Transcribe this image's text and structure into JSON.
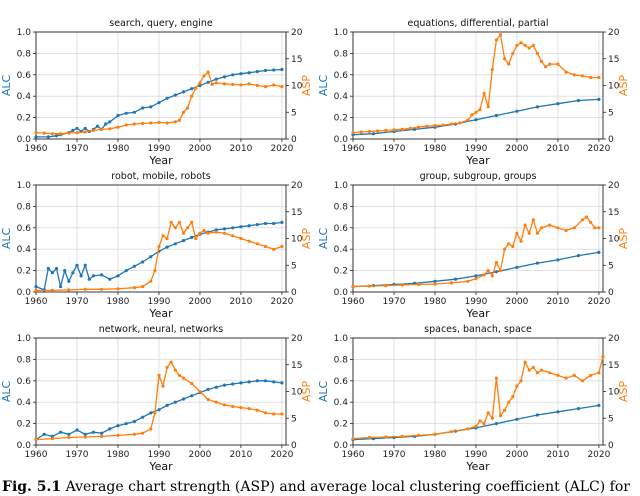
{
  "caption": {
    "label": "Fig. 5.1",
    "text": "Average chart strength (ASP) and average local clustering coefficient (ALC) for"
  },
  "chart_data": [
    {
      "type": "line",
      "title": "search, query, engine",
      "xlabel": "Year",
      "ylabel": "ALC",
      "y2label": "ASP",
      "xlim": [
        1960,
        2021
      ],
      "ylim": [
        0,
        1.0
      ],
      "y2lim": [
        0,
        20
      ],
      "xticks": [
        "1960",
        "1970",
        "1980",
        "1990",
        "2000",
        "2010",
        "2020"
      ],
      "yticks": [
        "0.0",
        "0.2",
        "0.4",
        "0.6",
        "0.8",
        "1.0"
      ],
      "y2ticks": [
        "0",
        "5",
        "10",
        "15",
        "20"
      ],
      "series": [
        {
          "name": "ALC",
          "axis": "left",
          "color": "#1f77b4",
          "x": [
            1960,
            1963,
            1965,
            1966,
            1968,
            1969,
            1970,
            1971,
            1972,
            1973,
            1974,
            1975,
            1976,
            1977,
            1978,
            1980,
            1982,
            1984,
            1986,
            1988,
            1990,
            1992,
            1994,
            1996,
            1998,
            2000,
            2002,
            2004,
            2006,
            2008,
            2010,
            2012,
            2014,
            2016,
            2018,
            2020
          ],
          "y": [
            0.02,
            0.02,
            0.03,
            0.04,
            0.06,
            0.08,
            0.1,
            0.07,
            0.1,
            0.07,
            0.09,
            0.12,
            0.09,
            0.14,
            0.16,
            0.22,
            0.24,
            0.25,
            0.29,
            0.3,
            0.34,
            0.38,
            0.41,
            0.44,
            0.47,
            0.5,
            0.53,
            0.56,
            0.58,
            0.6,
            0.61,
            0.62,
            0.63,
            0.64,
            0.645,
            0.65
          ]
        },
        {
          "name": "ASP",
          "axis": "right",
          "color": "#ff7f0e",
          "x": [
            1960,
            1962,
            1964,
            1966,
            1968,
            1970,
            1972,
            1974,
            1976,
            1978,
            1980,
            1982,
            1984,
            1986,
            1988,
            1990,
            1992,
            1994,
            1995,
            1996,
            1997,
            1998,
            1999,
            2000,
            2001,
            2002,
            2003,
            2004,
            2006,
            2008,
            2010,
            2012,
            2014,
            2016,
            2018,
            2020
          ],
          "y": [
            1.2,
            1.1,
            1.0,
            1.0,
            1.1,
            1.2,
            1.3,
            1.6,
            1.8,
            1.9,
            2.2,
            2.6,
            2.8,
            2.9,
            3.0,
            3.1,
            3.0,
            3.2,
            3.5,
            5.0,
            5.8,
            8.0,
            9.5,
            10.5,
            11.8,
            12.5,
            10.2,
            10.5,
            10.3,
            10.2,
            10.1,
            10.3,
            10.0,
            9.8,
            10.1,
            9.8
          ]
        }
      ]
    },
    {
      "type": "line",
      "title": "equations, differential, partial",
      "xlabel": "Year",
      "ylabel": "ALC",
      "y2label": "ASP",
      "xlim": [
        1960,
        2021
      ],
      "ylim": [
        0,
        1.0
      ],
      "y2lim": [
        0,
        20
      ],
      "xticks": [
        "1960",
        "1970",
        "1980",
        "1990",
        "2000",
        "2010",
        "2020"
      ],
      "yticks": [
        "0.0",
        "0.2",
        "0.4",
        "0.6",
        "0.8",
        "1.0"
      ],
      "y2ticks": [
        "0",
        "5",
        "10",
        "15",
        "20"
      ],
      "series": [
        {
          "name": "ALC",
          "axis": "left",
          "color": "#1f77b4",
          "x": [
            1960,
            1965,
            1970,
            1975,
            1980,
            1985,
            1990,
            1995,
            2000,
            2005,
            2010,
            2015,
            2020
          ],
          "y": [
            0.04,
            0.05,
            0.07,
            0.09,
            0.11,
            0.14,
            0.18,
            0.22,
            0.26,
            0.3,
            0.33,
            0.36,
            0.37
          ]
        },
        {
          "name": "ASP",
          "axis": "right",
          "color": "#ff7f0e",
          "x": [
            1960,
            1962,
            1964,
            1966,
            1968,
            1970,
            1972,
            1974,
            1976,
            1978,
            1980,
            1982,
            1984,
            1986,
            1988,
            1989,
            1990,
            1991,
            1992,
            1993,
            1994,
            1995,
            1996,
            1997,
            1998,
            1999,
            2000,
            2001,
            2002,
            2003,
            2004,
            2005,
            2006,
            2007,
            2008,
            2010,
            2012,
            2014,
            2016,
            2018,
            2020
          ],
          "y": [
            1.2,
            1.3,
            1.4,
            1.5,
            1.6,
            1.7,
            1.8,
            2.0,
            2.2,
            2.4,
            2.5,
            2.6,
            2.8,
            3.0,
            3.5,
            4.5,
            5.0,
            5.5,
            8.5,
            6.0,
            13.0,
            18.5,
            19.5,
            15.0,
            14.0,
            16.0,
            17.5,
            18.0,
            17.5,
            17.0,
            17.5,
            16.0,
            14.5,
            13.5,
            14.0,
            14.0,
            12.5,
            12.0,
            11.8,
            11.5,
            11.5
          ]
        }
      ]
    },
    {
      "type": "line",
      "title": "robot, mobile, robots",
      "xlabel": "Year",
      "ylabel": "ALC",
      "y2label": "ASP",
      "xlim": [
        1960,
        2021
      ],
      "ylim": [
        0,
        1.0
      ],
      "y2lim": [
        0,
        20
      ],
      "xticks": [
        "1960",
        "1970",
        "1980",
        "1990",
        "2000",
        "2010",
        "2020"
      ],
      "yticks": [
        "0.0",
        "0.2",
        "0.4",
        "0.6",
        "0.8",
        "1.0"
      ],
      "y2ticks": [
        "0",
        "5",
        "10",
        "15",
        "20"
      ],
      "series": [
        {
          "name": "ALC",
          "axis": "left",
          "color": "#1f77b4",
          "x": [
            1960,
            1962,
            1963,
            1964,
            1965,
            1966,
            1967,
            1968,
            1969,
            1970,
            1971,
            1972,
            1973,
            1974,
            1976,
            1978,
            1980,
            1982,
            1984,
            1986,
            1988,
            1990,
            1992,
            1994,
            1996,
            1998,
            2000,
            2002,
            2004,
            2006,
            2008,
            2010,
            2012,
            2014,
            2016,
            2018,
            2020
          ],
          "y": [
            0.05,
            0.02,
            0.22,
            0.18,
            0.22,
            0.05,
            0.2,
            0.1,
            0.18,
            0.25,
            0.15,
            0.25,
            0.12,
            0.15,
            0.16,
            0.12,
            0.15,
            0.2,
            0.24,
            0.28,
            0.33,
            0.38,
            0.42,
            0.45,
            0.48,
            0.51,
            0.54,
            0.56,
            0.58,
            0.59,
            0.6,
            0.61,
            0.62,
            0.63,
            0.64,
            0.64,
            0.65
          ]
        },
        {
          "name": "ASP",
          "axis": "right",
          "color": "#ff7f0e",
          "x": [
            1960,
            1964,
            1968,
            1972,
            1976,
            1980,
            1984,
            1986,
            1988,
            1989,
            1990,
            1991,
            1992,
            1993,
            1994,
            1995,
            1996,
            1997,
            1998,
            1999,
            2000,
            2001,
            2002,
            2004,
            2006,
            2008,
            2010,
            2012,
            2014,
            2016,
            2018,
            2020
          ],
          "y": [
            0.3,
            0.3,
            0.4,
            0.5,
            0.5,
            0.6,
            0.8,
            1.0,
            2.0,
            4.0,
            8.5,
            10.5,
            10.0,
            13.0,
            12.0,
            13.0,
            11.0,
            12.0,
            13.0,
            10.0,
            11.0,
            11.5,
            11.0,
            11.2,
            11.0,
            10.5,
            10.0,
            9.5,
            9.0,
            8.5,
            8.0,
            8.5
          ]
        }
      ]
    },
    {
      "type": "line",
      "title": "group, subgroup, groups",
      "xlabel": "Year",
      "ylabel": "ALC",
      "y2label": "ASP",
      "xlim": [
        1960,
        2021
      ],
      "ylim": [
        0,
        1.0
      ],
      "y2lim": [
        0,
        20
      ],
      "xticks": [
        "1960",
        "1970",
        "1980",
        "1990",
        "2000",
        "2010",
        "2020"
      ],
      "yticks": [
        "0.0",
        "0.2",
        "0.4",
        "0.6",
        "0.8",
        "1.0"
      ],
      "y2ticks": [
        "0",
        "5",
        "10",
        "15",
        "20"
      ],
      "series": [
        {
          "name": "ALC",
          "axis": "left",
          "color": "#1f77b4",
          "x": [
            1960,
            1965,
            1970,
            1975,
            1980,
            1985,
            1990,
            1995,
            2000,
            2005,
            2010,
            2015,
            2020
          ],
          "y": [
            0.05,
            0.06,
            0.07,
            0.08,
            0.1,
            0.12,
            0.15,
            0.19,
            0.23,
            0.27,
            0.3,
            0.34,
            0.37
          ]
        },
        {
          "name": "ASP",
          "axis": "right",
          "color": "#ff7f0e",
          "x": [
            1960,
            1964,
            1968,
            1972,
            1976,
            1980,
            1984,
            1988,
            1990,
            1992,
            1993,
            1994,
            1995,
            1996,
            1997,
            1998,
            1999,
            2000,
            2001,
            2002,
            2003,
            2004,
            2005,
            2006,
            2008,
            2010,
            2012,
            2014,
            2016,
            2017,
            2018,
            2019,
            2020
          ],
          "y": [
            1.0,
            1.1,
            1.2,
            1.3,
            1.4,
            1.5,
            1.7,
            2.0,
            2.5,
            3.2,
            4.0,
            3.0,
            5.5,
            4.0,
            8.0,
            9.0,
            8.5,
            11.0,
            9.5,
            12.5,
            11.0,
            13.5,
            11.0,
            12.0,
            12.5,
            12.0,
            11.5,
            12.0,
            13.5,
            14.0,
            13.0,
            12.0,
            12.0
          ]
        }
      ]
    },
    {
      "type": "line",
      "title": "network, neural, networks",
      "xlabel": "Year",
      "ylabel": "ALC",
      "y2label": "ASP",
      "xlim": [
        1960,
        2021
      ],
      "ylim": [
        0,
        1.0
      ],
      "y2lim": [
        0,
        20
      ],
      "xticks": [
        "1960",
        "1970",
        "1980",
        "1990",
        "2000",
        "2010",
        "2020"
      ],
      "yticks": [
        "0.0",
        "0.2",
        "0.4",
        "0.6",
        "0.8",
        "1.0"
      ],
      "y2ticks": [
        "0",
        "5",
        "10",
        "15",
        "20"
      ],
      "series": [
        {
          "name": "ALC",
          "axis": "left",
          "color": "#1f77b4",
          "x": [
            1960,
            1962,
            1964,
            1966,
            1968,
            1970,
            1972,
            1974,
            1976,
            1978,
            1980,
            1982,
            1984,
            1986,
            1988,
            1990,
            1992,
            1994,
            1996,
            1998,
            2000,
            2002,
            2004,
            2006,
            2008,
            2010,
            2012,
            2014,
            2016,
            2018,
            2020
          ],
          "y": [
            0.05,
            0.1,
            0.08,
            0.12,
            0.1,
            0.14,
            0.1,
            0.12,
            0.11,
            0.15,
            0.18,
            0.2,
            0.22,
            0.26,
            0.3,
            0.33,
            0.37,
            0.4,
            0.43,
            0.46,
            0.49,
            0.52,
            0.54,
            0.56,
            0.57,
            0.58,
            0.59,
            0.6,
            0.6,
            0.59,
            0.58
          ]
        },
        {
          "name": "ASP",
          "axis": "right",
          "color": "#ff7f0e",
          "x": [
            1960,
            1964,
            1968,
            1972,
            1976,
            1980,
            1984,
            1986,
            1988,
            1989,
            1990,
            1991,
            1992,
            1993,
            1994,
            1995,
            1996,
            1998,
            2000,
            2002,
            2004,
            2006,
            2008,
            2010,
            2012,
            2014,
            2016,
            2018,
            2020
          ],
          "y": [
            1.0,
            1.2,
            1.4,
            1.5,
            1.6,
            1.8,
            2.0,
            2.2,
            3.0,
            6.0,
            13.0,
            11.0,
            14.5,
            15.5,
            14.0,
            13.0,
            12.5,
            11.5,
            10.0,
            8.5,
            8.0,
            7.5,
            7.2,
            7.0,
            6.8,
            6.5,
            6.0,
            5.8,
            5.8
          ]
        }
      ]
    },
    {
      "type": "line",
      "title": "spaces, banach, space",
      "xlabel": "Year",
      "ylabel": "ALC",
      "y2label": "ASP",
      "xlim": [
        1960,
        2021
      ],
      "ylim": [
        0,
        1.0
      ],
      "y2lim": [
        0,
        20
      ],
      "xticks": [
        "1960",
        "1970",
        "1980",
        "1990",
        "2000",
        "2010",
        "2020"
      ],
      "yticks": [
        "0.0",
        "0.2",
        "0.4",
        "0.6",
        "0.8",
        "1.0"
      ],
      "y2ticks": [
        "0",
        "5",
        "10",
        "15",
        "20"
      ],
      "series": [
        {
          "name": "ALC",
          "axis": "left",
          "color": "#1f77b4",
          "x": [
            1960,
            1965,
            1970,
            1975,
            1980,
            1985,
            1990,
            1995,
            2000,
            2005,
            2010,
            2015,
            2020
          ],
          "y": [
            0.05,
            0.06,
            0.07,
            0.08,
            0.1,
            0.13,
            0.16,
            0.2,
            0.24,
            0.28,
            0.31,
            0.34,
            0.37
          ]
        },
        {
          "name": "ASP",
          "axis": "right",
          "color": "#ff7f0e",
          "x": [
            1960,
            1964,
            1968,
            1972,
            1976,
            1980,
            1984,
            1988,
            1990,
            1991,
            1992,
            1993,
            1994,
            1995,
            1996,
            1997,
            1998,
            1999,
            2000,
            2001,
            2002,
            2003,
            2004,
            2005,
            2006,
            2008,
            2010,
            2012,
            2014,
            2016,
            2018,
            2020,
            2021
          ],
          "y": [
            1.2,
            1.4,
            1.5,
            1.6,
            1.8,
            2.0,
            2.5,
            3.0,
            3.5,
            4.5,
            4.0,
            6.0,
            5.0,
            12.5,
            5.5,
            6.5,
            8.0,
            9.0,
            11.0,
            12.0,
            15.5,
            14.0,
            14.5,
            13.5,
            14.0,
            13.5,
            13.0,
            12.5,
            13.0,
            12.0,
            13.0,
            13.5,
            16.5
          ]
        }
      ]
    }
  ]
}
